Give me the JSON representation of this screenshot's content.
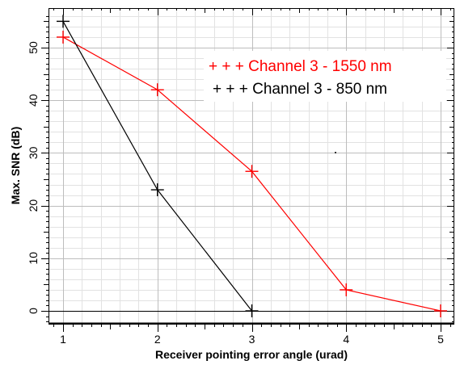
{
  "chart_data": {
    "type": "line",
    "title": "",
    "xlabel": "Receiver pointing error angle (urad)",
    "ylabel": "Max. SNR (dB)",
    "xlim": [
      0.85,
      5.2
    ],
    "ylim": [
      -2,
      57
    ],
    "x_ticks": [
      "1",
      "2",
      "3",
      "4",
      "5"
    ],
    "y_ticks": [
      "0",
      "10",
      "20",
      "30",
      "40",
      "50"
    ],
    "grid": true,
    "legend_position": "top-right",
    "series": [
      {
        "name": "Channel 3 - 1550 nm",
        "legend_label": "+ + + Channel 3 - 1550 nm",
        "color": "#ff0000",
        "marker": "plus",
        "x": [
          1,
          2,
          3,
          4,
          5
        ],
        "y": [
          52,
          42,
          26.5,
          4,
          0
        ]
      },
      {
        "name": "Channel 3 - 850 nm",
        "legend_label": "+ + + Channel 3 - 850 nm",
        "color": "#000000",
        "marker": "plus",
        "x": [
          1,
          2,
          3
        ],
        "y": [
          55,
          23,
          0
        ]
      }
    ]
  }
}
